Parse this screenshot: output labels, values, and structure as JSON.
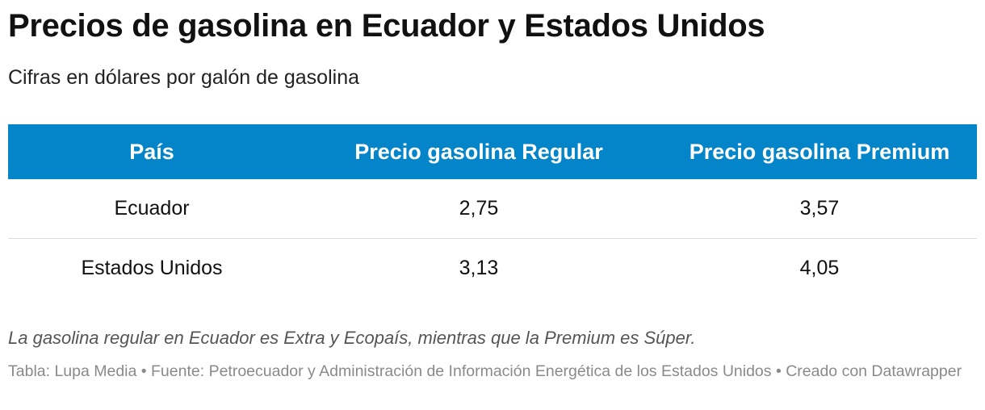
{
  "header": {
    "title": "Precios de gasolina en Ecuador y Estados Unidos",
    "subtitle": "Cifras en dólares por galón de gasolina"
  },
  "colors": {
    "header_bg": "#0585c9",
    "header_text": "#ffffff",
    "row_divider": "#dcdcdc"
  },
  "chart_data": {
    "type": "table",
    "title": "Precios de gasolina en Ecuador y Estados Unidos",
    "subtitle": "Cifras en dólares por galón de gasolina",
    "columns": [
      "País",
      "Precio gasolina Regular",
      "Precio gasolina Premium"
    ],
    "rows": [
      [
        "Ecuador",
        "2,75",
        "3,57"
      ],
      [
        "Estados Unidos",
        "3,13",
        "4,05"
      ]
    ]
  },
  "footer": {
    "note": "La gasolina regular en Ecuador es Extra y Ecopaís, mientras que la Premium es Súper.",
    "credits": "Tabla: Lupa Media • Fuente: Petroecuador y Administración de Información Energética de los Estados Unidos • Creado con Datawrapper"
  }
}
